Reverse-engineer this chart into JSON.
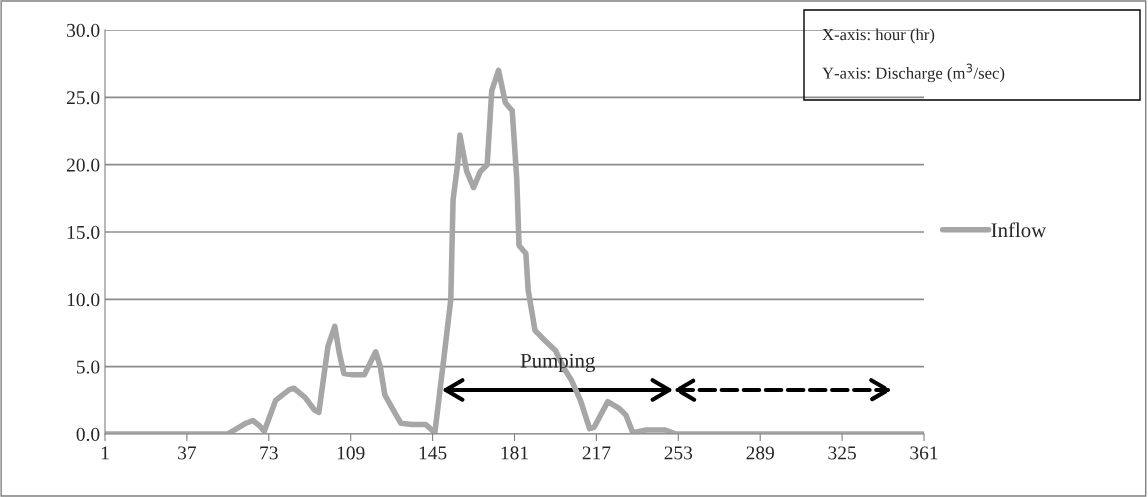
{
  "chart_data": {
    "type": "line",
    "xlim": [
      1,
      361
    ],
    "xticks": [
      1,
      37,
      73,
      109,
      145,
      181,
      217,
      253,
      289,
      325,
      361
    ],
    "ylim": [
      0,
      30
    ],
    "yticks": [
      {
        "value": 0,
        "label": "0.0"
      },
      {
        "value": 5,
        "label": "5.0"
      },
      {
        "value": 10,
        "label": "10.0"
      },
      {
        "value": 15,
        "label": "15.0"
      },
      {
        "value": 20,
        "label": "20.0"
      },
      {
        "value": 25,
        "label": "25.0"
      },
      {
        "value": 30,
        "label": "30.0"
      }
    ],
    "grid": "y",
    "legend": "right",
    "line_style": "solid",
    "marker": "none",
    "series": [
      {
        "name": "Inflow",
        "color": "#a6a6a6",
        "x": [
          1,
          55,
          58,
          63,
          66,
          69,
          71,
          76,
          82,
          84,
          89,
          93,
          95,
          99,
          102,
          104,
          106,
          110,
          115,
          120,
          122,
          124,
          127,
          131,
          136,
          142,
          146,
          148,
          150,
          153,
          154,
          156,
          157,
          160,
          163,
          166,
          169,
          171,
          174,
          177,
          180,
          182,
          183,
          186,
          187,
          190,
          194,
          199,
          203,
          206,
          210,
          214,
          216,
          222,
          227,
          230,
          233,
          239,
          247,
          252,
          361
        ],
        "values": [
          0,
          0,
          0.3,
          0.8,
          1.0,
          0.6,
          0.2,
          2.5,
          3.3,
          3.4,
          2.7,
          1.8,
          1.6,
          6.5,
          8.0,
          6.0,
          4.5,
          4.4,
          4.4,
          6.1,
          5.0,
          2.9,
          2.0,
          0.8,
          0.7,
          0.7,
          0.1,
          2.9,
          5.7,
          10,
          17.4,
          20,
          22.2,
          19.5,
          18.3,
          19.5,
          20.0,
          25.5,
          27.0,
          24.6,
          24.0,
          18.9,
          14.0,
          13.4,
          10.7,
          7.7,
          7.0,
          6.2,
          4.8,
          4.0,
          2.5,
          0.4,
          0.5,
          2.4,
          1.9,
          1.4,
          0.1,
          0.3,
          0.3,
          0,
          0
        ]
      }
    ],
    "annotations": [
      "X-axis: hour (hr)",
      "Y-axis: Discharge (m$^{3}$/sec)",
      {
        "text": "Pumping",
        "x": 200,
        "y": 4.6
      }
    ]
  }
}
